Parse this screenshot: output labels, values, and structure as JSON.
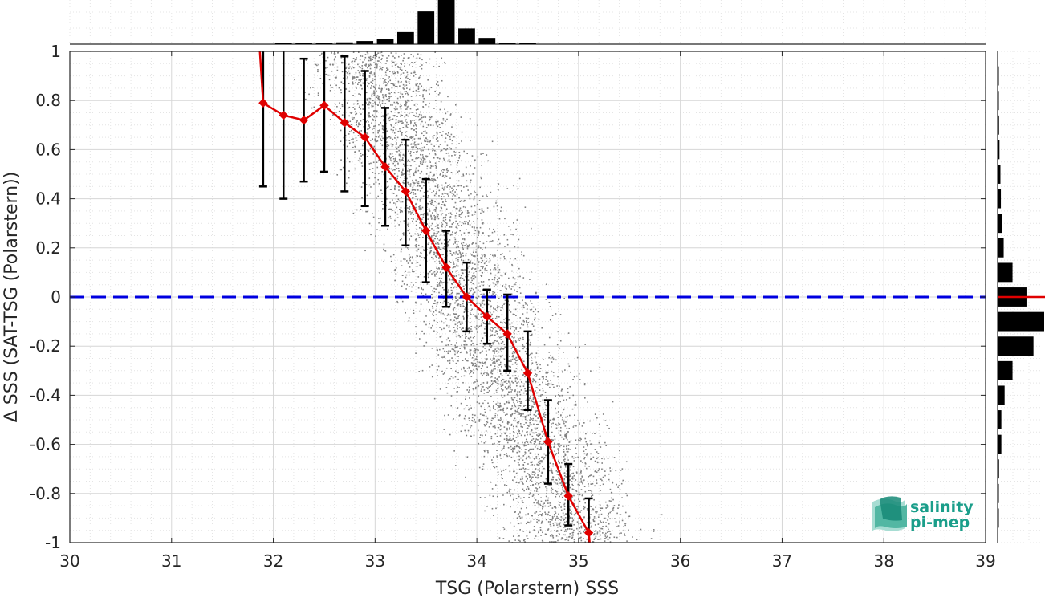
{
  "chart_data": {
    "type": "scatter",
    "xlabel": "TSG (Polarstern) SSS",
    "ylabel": "Δ SSS (SAT-TSG (Polarstern))",
    "xlim": [
      30,
      39
    ],
    "ylim": [
      -1,
      1
    ],
    "x_ticks": [
      "30",
      "31",
      "32",
      "33",
      "34",
      "35",
      "36",
      "37",
      "38",
      "39"
    ],
    "y_ticks": [
      "1",
      "0.8",
      "0.6",
      "0.4",
      "0.2",
      "0",
      "-0.2",
      "-0.4",
      "-0.6",
      "-0.8",
      "-1"
    ],
    "grid": true,
    "zero_line": {
      "y": 0,
      "color": "#0000e0",
      "style": "dashed"
    },
    "scatter_color": "#808080",
    "binned_mean": {
      "color": "#e00000",
      "marker": "diamond",
      "x": [
        31.9,
        32.1,
        32.3,
        32.5,
        32.7,
        32.9,
        33.1,
        33.3,
        33.5,
        33.7,
        33.9,
        34.1,
        34.3,
        34.5,
        34.7,
        34.9,
        35.1
      ],
      "y": [
        0.79,
        0.74,
        0.72,
        0.78,
        0.71,
        0.65,
        0.53,
        0.43,
        0.27,
        0.12,
        0.0,
        -0.08,
        -0.15,
        -0.31,
        -0.59,
        -0.81,
        -0.96
      ],
      "err_low": [
        0.45,
        0.4,
        0.47,
        0.51,
        0.43,
        0.37,
        0.29,
        0.21,
        0.06,
        -0.04,
        -0.14,
        -0.19,
        -0.3,
        -0.46,
        -0.76,
        -0.93,
        -1.0
      ],
      "err_high": [
        1.0,
        1.0,
        0.97,
        1.0,
        0.98,
        0.92,
        0.77,
        0.64,
        0.48,
        0.27,
        0.14,
        0.03,
        0.01,
        -0.14,
        -0.42,
        -0.68,
        -0.82
      ],
      "err_color": "#000000"
    },
    "top_histogram": {
      "bins": [
        32.1,
        32.3,
        32.5,
        32.7,
        32.9,
        33.1,
        33.3,
        33.5,
        33.7,
        33.9,
        34.1,
        34.3,
        34.5
      ],
      "values": [
        0.01,
        0.02,
        0.03,
        0.04,
        0.07,
        0.12,
        0.27,
        0.73,
        1.0,
        0.35,
        0.14,
        0.03,
        0.0
      ]
    },
    "right_histogram": {
      "bins": [
        0.9,
        0.8,
        0.7,
        0.6,
        0.5,
        0.4,
        0.3,
        0.2,
        0.1,
        0.0,
        -0.1,
        -0.2,
        -0.3,
        -0.4,
        -0.5,
        -0.6,
        -0.7,
        -0.8,
        -0.9
      ],
      "values": [
        0.02,
        0.02,
        0.03,
        0.04,
        0.06,
        0.07,
        0.1,
        0.13,
        0.32,
        0.62,
        1.0,
        0.77,
        0.32,
        0.15,
        0.08,
        0.08,
        0.03,
        0.02,
        0.02
      ],
      "median_line_color": "#e00000"
    }
  },
  "logo": {
    "line1": "salinity",
    "line2": "pi-mep"
  }
}
